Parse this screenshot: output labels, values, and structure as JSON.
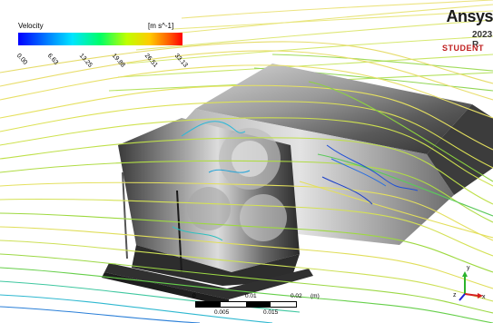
{
  "legend": {
    "title": "Velocity",
    "unit": "[m s^-1]",
    "ticks": [
      "0.00",
      "6.63",
      "13.25",
      "19.88",
      "26.51",
      "33.13"
    ]
  },
  "logo": {
    "brand": "Ansys",
    "year": "2023 R",
    "edition": "STUDENT"
  },
  "scale": {
    "labels_top": [
      "0",
      "0.01",
      "0.02",
      "(m)"
    ],
    "labels_bottom": [
      "0.005",
      "0.015"
    ]
  },
  "axes": {
    "y": "y",
    "z": "z",
    "x": "x"
  },
  "colors": {
    "stream_yellow": "#e8e25a",
    "stream_green": "#66d63a",
    "stream_cyan": "#2ad0c4",
    "stream_blue": "#1a4fd6",
    "body_dark": "#4a4a4a",
    "body_light": "#bcbcbc"
  }
}
